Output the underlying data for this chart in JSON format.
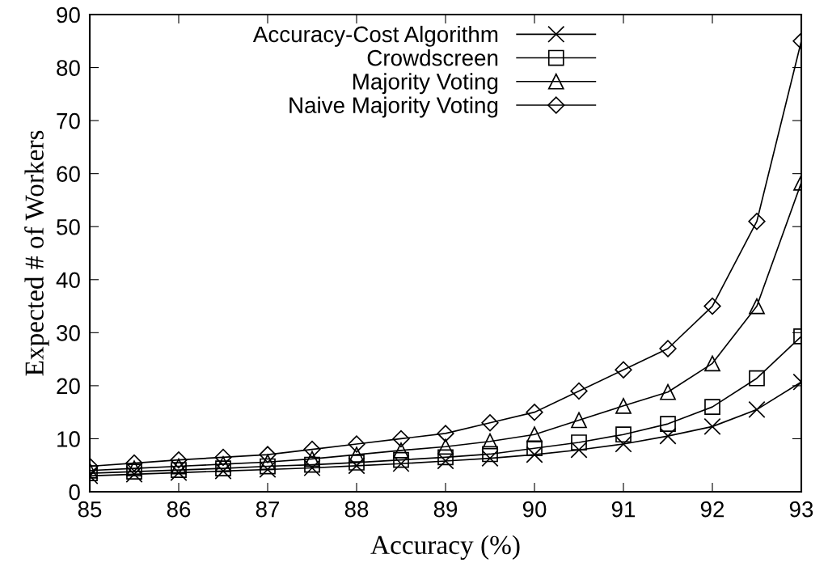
{
  "chart_data": {
    "type": "line",
    "xlabel": "Accuracy (%)",
    "ylabel": "Expected # of Workers",
    "x": [
      85,
      85.5,
      86,
      86.5,
      87,
      87.5,
      88,
      88.5,
      89,
      89.5,
      90,
      90.5,
      91,
      91.5,
      92,
      92.5,
      93
    ],
    "xlim": [
      85,
      93
    ],
    "xticks": [
      85,
      86,
      87,
      88,
      89,
      90,
      91,
      92,
      93
    ],
    "ylim": [
      0,
      90
    ],
    "yticks": [
      0,
      10,
      20,
      30,
      40,
      50,
      60,
      70,
      80,
      90
    ],
    "grid": false,
    "legend": "top",
    "series": [
      {
        "name": "Accuracy-Cost Algorithm",
        "color": "#000000",
        "marker": "cross",
        "values": [
          3.0,
          3.3,
          3.6,
          3.9,
          4.2,
          4.5,
          4.9,
          5.3,
          5.8,
          6.3,
          7.0,
          7.9,
          9.0,
          10.5,
          12.3,
          15.5,
          20.7
        ]
      },
      {
        "name": "Crowdscreen",
        "color": "#000000",
        "marker": "square",
        "values": [
          3.5,
          3.8,
          4.1,
          4.4,
          4.8,
          5.1,
          5.5,
          6.0,
          6.5,
          7.1,
          8.2,
          9.3,
          10.8,
          12.8,
          16.0,
          21.4,
          29.3
        ]
      },
      {
        "name": "Majority Voting",
        "color": "#000000",
        "marker": "triangle",
        "values": [
          4.0,
          4.4,
          4.8,
          5.2,
          5.6,
          6.2,
          7.0,
          7.8,
          8.5,
          9.5,
          10.8,
          13.5,
          16.2,
          18.8,
          24.2,
          35.0,
          58.3
        ]
      },
      {
        "name": "Naive Majority Voting",
        "color": "#000000",
        "marker": "diamond",
        "values": [
          4.8,
          5.4,
          6.0,
          6.5,
          7.0,
          8.0,
          9.0,
          10.0,
          11.0,
          13.0,
          15.0,
          19.0,
          23.0,
          27.0,
          35.0,
          51.0,
          85.0
        ]
      }
    ]
  }
}
